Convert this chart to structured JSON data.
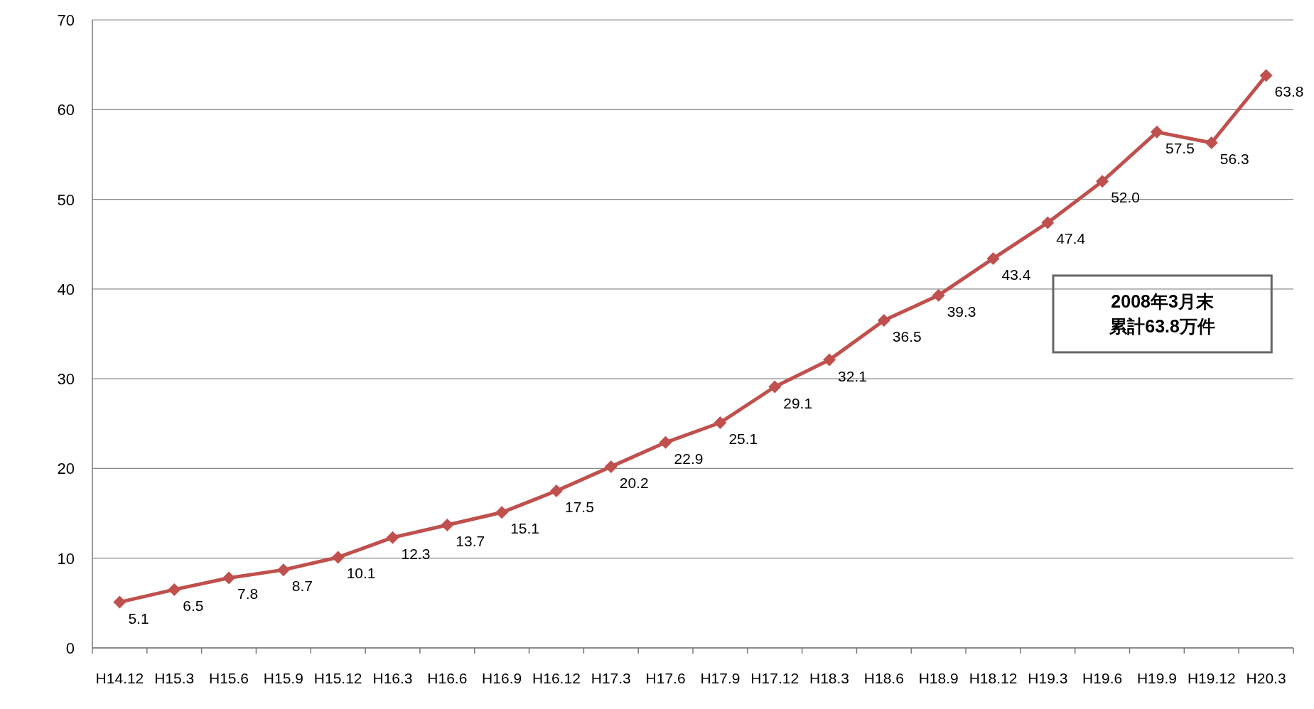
{
  "chart_data": {
    "type": "line",
    "categories": [
      "H14.12",
      "H15.3",
      "H15.6",
      "H15.9",
      "H15.12",
      "H16.3",
      "H16.6",
      "H16.9",
      "H16.12",
      "H17.3",
      "H17.6",
      "H17.9",
      "H17.12",
      "H18.3",
      "H18.6",
      "H18.9",
      "H18.12",
      "H19.3",
      "H19.6",
      "H19.9",
      "H19.12",
      "H20.3"
    ],
    "series": [
      {
        "color": "#c0504d",
        "values": [
          5.1,
          6.5,
          7.8,
          8.7,
          10.1,
          12.3,
          13.7,
          15.1,
          17.5,
          20.2,
          22.9,
          25.1,
          29.1,
          32.1,
          36.5,
          39.3,
          43.4,
          47.4,
          52.0,
          57.5,
          56.3,
          63.8
        ]
      }
    ],
    "value_labels": [
      "5.1",
      "6.5",
      "7.8",
      "8.7",
      "10.1",
      "12.3",
      "13.7",
      "15.1",
      "17.5",
      "20.2",
      "22.9",
      "25.1",
      "29.1",
      "32.1",
      "36.5",
      "39.3",
      "43.4",
      "47.4",
      "52.0",
      "57.5",
      "56.3",
      "63.8"
    ],
    "ylim": [
      0,
      70
    ],
    "yticks": [
      0,
      10,
      20,
      30,
      40,
      50,
      60,
      70
    ],
    "grid": "y",
    "marker": "diamond",
    "line_style": "solid",
    "annotations": [
      "2008年3月末",
      "累計63.8万件"
    ]
  }
}
